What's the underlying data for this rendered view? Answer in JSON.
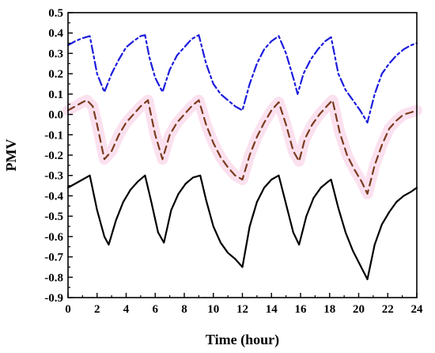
{
  "chart_data": {
    "type": "line",
    "title": "",
    "xlabel": "Time (hour)",
    "ylabel": "PMV",
    "xlim": [
      0,
      24
    ],
    "ylim": [
      -0.9,
      0.5
    ],
    "xticks": [
      0,
      2,
      4,
      6,
      8,
      10,
      12,
      14,
      16,
      18,
      20,
      22,
      24
    ],
    "yticks": [
      -0.9,
      -0.8,
      -0.7,
      -0.6,
      -0.5,
      -0.4,
      -0.3,
      -0.2,
      -0.1,
      0.0,
      0.1,
      0.2,
      0.3,
      0.4,
      0.5
    ],
    "xtick_labels": [
      "0",
      "2",
      "4",
      "6",
      "8",
      "10",
      "12",
      "14",
      "16",
      "18",
      "20",
      "22",
      "24"
    ],
    "ytick_labels": [
      "-0.9",
      "-0.8",
      "-0.7",
      "-0.6",
      "-0.5",
      "-0.4",
      "-0.3",
      "-0.2",
      "-0.1",
      "0.0",
      "0.1",
      "0.2",
      "0.3",
      "0.4",
      "0.5"
    ],
    "grid": false,
    "legend": "none",
    "background_highlight_color": "#f7c9e1",
    "series": [
      {
        "style": "dash-dot",
        "color": "#1c1cdc",
        "x": [
          0,
          0.5,
          1,
          1.5,
          2,
          2.5,
          3,
          3.5,
          4,
          4.5,
          5,
          5.3,
          5.6,
          6,
          6.5,
          7,
          7.5,
          8,
          8.5,
          9,
          9.5,
          10,
          10.5,
          11,
          11.5,
          12,
          12.5,
          13,
          13.5,
          14,
          14.5,
          15,
          15.5,
          15.8,
          16.2,
          16.7,
          17.2,
          17.7,
          18.1,
          18.6,
          19.1,
          19.6,
          20.1,
          20.6,
          21.1,
          21.6,
          22.1,
          22.6,
          23.1,
          23.6,
          24
        ],
        "y": [
          0.34,
          0.36,
          0.375,
          0.385,
          0.2,
          0.11,
          0.2,
          0.27,
          0.33,
          0.36,
          0.385,
          0.39,
          0.28,
          0.18,
          0.11,
          0.22,
          0.29,
          0.33,
          0.37,
          0.39,
          0.25,
          0.15,
          0.1,
          0.07,
          0.04,
          0.02,
          0.15,
          0.25,
          0.32,
          0.36,
          0.385,
          0.3,
          0.18,
          0.1,
          0.2,
          0.27,
          0.32,
          0.36,
          0.38,
          0.2,
          0.12,
          0.07,
          0.02,
          -0.04,
          0.1,
          0.2,
          0.25,
          0.29,
          0.32,
          0.34,
          0.35
        ]
      },
      {
        "style": "dashed",
        "color": "#7a3b1e",
        "x": [
          0,
          0.5,
          1,
          1.3,
          1.7,
          2,
          2.5,
          3,
          3.5,
          4,
          4.5,
          5,
          5.5,
          6,
          6.5,
          7,
          7.5,
          8,
          8.5,
          9,
          9.5,
          10,
          10.5,
          11,
          11.5,
          12,
          12.5,
          13,
          13.5,
          14,
          14.5,
          15,
          15.5,
          15.9,
          16.3,
          16.8,
          17.3,
          17.8,
          18.2,
          18.7,
          19.2,
          19.7,
          20.2,
          20.6,
          21.1,
          21.6,
          22.1,
          22.6,
          23.1,
          23.6,
          24
        ],
        "y": [
          0.02,
          0.04,
          0.06,
          0.07,
          0.04,
          -0.05,
          -0.22,
          -0.18,
          -0.1,
          -0.04,
          0.0,
          0.04,
          0.07,
          -0.1,
          -0.22,
          -0.1,
          -0.04,
          0.0,
          0.04,
          0.07,
          -0.05,
          -0.14,
          -0.21,
          -0.26,
          -0.3,
          -0.32,
          -0.2,
          -0.11,
          -0.04,
          0.02,
          0.06,
          -0.05,
          -0.18,
          -0.23,
          -0.12,
          -0.05,
          0.0,
          0.04,
          0.07,
          -0.09,
          -0.2,
          -0.27,
          -0.33,
          -0.39,
          -0.25,
          -0.15,
          -0.07,
          -0.03,
          0.0,
          0.01,
          0.02
        ]
      },
      {
        "style": "solid",
        "color": "#000000",
        "x": [
          0,
          0.5,
          1,
          1.5,
          2,
          2.5,
          2.8,
          3.3,
          3.8,
          4.3,
          4.8,
          5.3,
          5.7,
          6.2,
          6.6,
          7.1,
          7.6,
          8.1,
          8.6,
          9.1,
          9.5,
          10,
          10.5,
          11,
          11.5,
          12,
          12.5,
          13,
          13.5,
          14,
          14.5,
          15,
          15.5,
          15.9,
          16.4,
          16.9,
          17.4,
          17.9,
          18.1,
          18.6,
          19.1,
          19.6,
          20.1,
          20.6,
          21.1,
          21.6,
          22.1,
          22.6,
          23.1,
          23.6,
          24
        ],
        "y": [
          -0.36,
          -0.34,
          -0.32,
          -0.3,
          -0.47,
          -0.6,
          -0.64,
          -0.52,
          -0.43,
          -0.37,
          -0.33,
          -0.3,
          -0.42,
          -0.58,
          -0.63,
          -0.47,
          -0.39,
          -0.34,
          -0.31,
          -0.3,
          -0.42,
          -0.55,
          -0.63,
          -0.68,
          -0.71,
          -0.75,
          -0.55,
          -0.43,
          -0.36,
          -0.32,
          -0.3,
          -0.44,
          -0.58,
          -0.64,
          -0.5,
          -0.41,
          -0.36,
          -0.33,
          -0.32,
          -0.46,
          -0.58,
          -0.67,
          -0.74,
          -0.81,
          -0.64,
          -0.54,
          -0.48,
          -0.43,
          -0.4,
          -0.38,
          -0.36
        ]
      }
    ]
  }
}
